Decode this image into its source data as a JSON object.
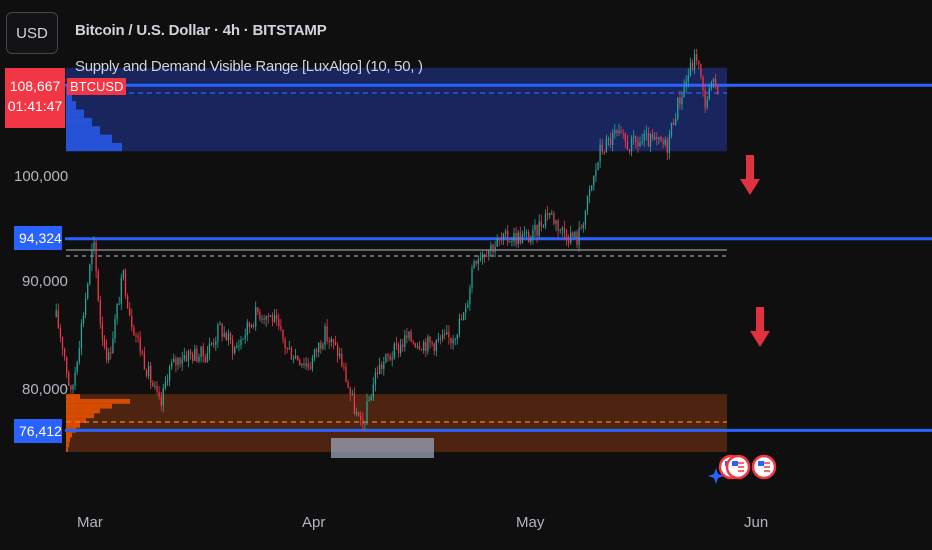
{
  "header": {
    "currency": "USD",
    "title": "Bitcoin / U.S. Dollar · 4h · BITSTAMP",
    "indicator": "Supply and Demand Visible Range [LuxAlgo] (10, 50, )"
  },
  "price_tag": {
    "price": "108,667",
    "countdown": "01:41:47",
    "symbol": "BTCUSD"
  },
  "level_tags": {
    "upper": "94,324",
    "lower": "76,412"
  },
  "colors": {
    "bull": "#26a69a",
    "bear": "#f23645",
    "level": "#2962ff",
    "supply": "#1a2a6b",
    "demand": "#8a3a10"
  },
  "chart_data": {
    "type": "candlestick",
    "title": "Bitcoin / U.S. Dollar · 4h · BITSTAMP",
    "y_ticks": [
      80000,
      90000,
      100000
    ],
    "y_tick_labels": [
      "80,000",
      "90,000",
      "100,000"
    ],
    "x_ticks": [
      "Mar",
      "Apr",
      "May",
      "Jun"
    ],
    "horizontal_levels": [
      108667,
      94324,
      76412
    ],
    "supply_zone": [
      102500,
      110300
    ],
    "demand_zone": [
      74400,
      79800
    ],
    "close_path": [
      [
        "Feb 26",
        87000
      ],
      [
        "Feb 27",
        84000
      ],
      [
        "Feb 28",
        79500
      ],
      [
        "Mar 2",
        94000
      ],
      [
        "Mar 3",
        86000
      ],
      [
        "Mar 4",
        83000
      ],
      [
        "Mar 6",
        91000
      ],
      [
        "Mar 7",
        87000
      ],
      [
        "Mar 9",
        82500
      ],
      [
        "Mar 11",
        78500
      ],
      [
        "Mar 12",
        82000
      ],
      [
        "Mar 14",
        83500
      ],
      [
        "Mar 17",
        83500
      ],
      [
        "Mar 19",
        86000
      ],
      [
        "Mar 21",
        84000
      ],
      [
        "Mar 24",
        87500
      ],
      [
        "Mar 26",
        87000
      ],
      [
        "Mar 28",
        84000
      ],
      [
        "Mar 31",
        82500
      ],
      [
        "Apr 2",
        85500
      ],
      [
        "Apr 4",
        83500
      ],
      [
        "Apr 6",
        78500
      ],
      [
        "Apr 7",
        76412
      ],
      [
        "Apr 9",
        82000
      ],
      [
        "Apr 11",
        83500
      ],
      [
        "Apr 13",
        85000
      ],
      [
        "Apr 16",
        84500
      ],
      [
        "Apr 19",
        85000
      ],
      [
        "Apr 21",
        87500
      ],
      [
        "Apr 22",
        92500
      ],
      [
        "Apr 24",
        93500
      ],
      [
        "Apr 27",
        94500
      ],
      [
        "Apr 30",
        94500
      ],
      [
        "May 2",
        97000
      ],
      [
        "May 4",
        95000
      ],
      [
        "May 6",
        94300
      ],
      [
        "May 8",
        99500
      ],
      [
        "May 9",
        102500
      ],
      [
        "May 11",
        104000
      ],
      [
        "May 13",
        103000
      ],
      [
        "May 15",
        103500
      ],
      [
        "May 18",
        103000
      ],
      [
        "May 19",
        106000
      ],
      [
        "May 21",
        110000
      ],
      [
        "May 22",
        111500
      ],
      [
        "May 23",
        107000
      ],
      [
        "May 24",
        108500
      ],
      [
        "May 25",
        108667
      ]
    ]
  }
}
